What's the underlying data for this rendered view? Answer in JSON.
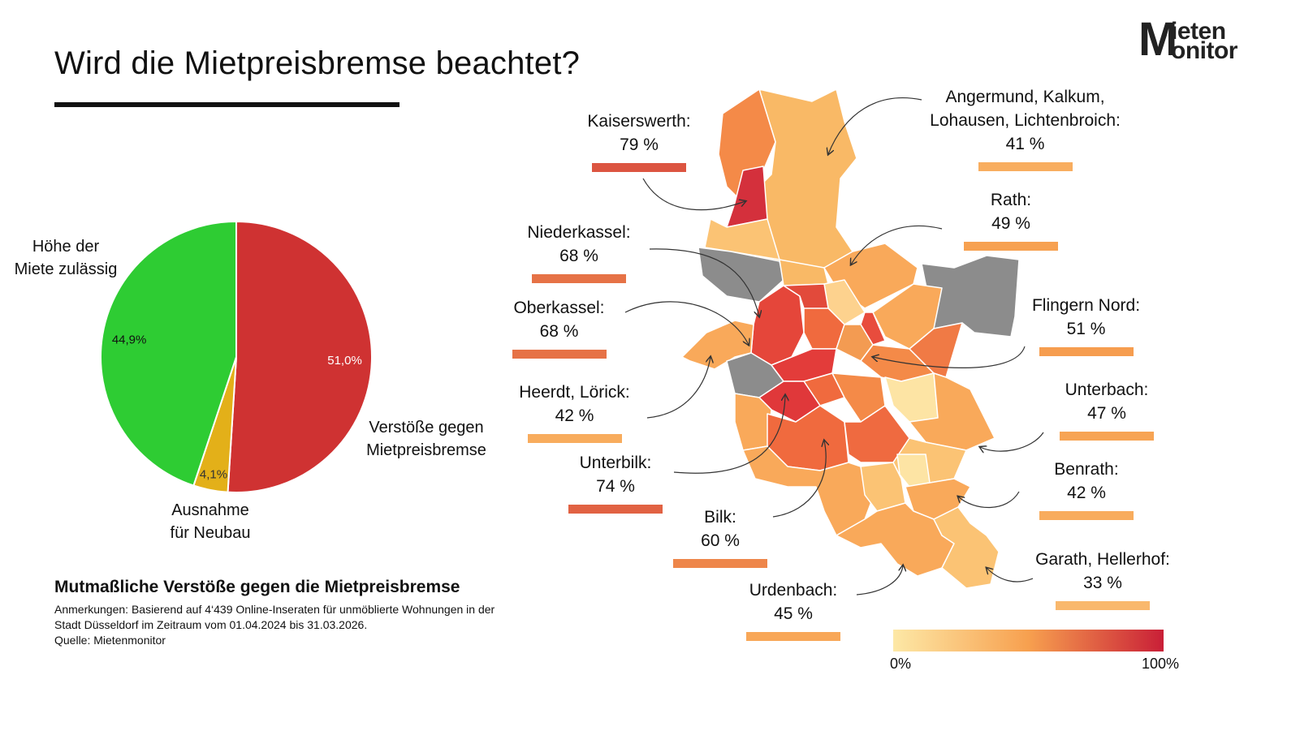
{
  "title": "Wird die Mietpreisbremse beachtet?",
  "logo": {
    "line1": "ieten",
    "line2": "onitor",
    "initial": "M"
  },
  "colors": {
    "compliant": "#2ecc33",
    "exception": "#e3b019",
    "violation": "#cf3232",
    "no_data": "#8c8c8c",
    "scale_low": "#fde8a6",
    "scale_mid": "#f7a04f",
    "scale_high": "#c91f37"
  },
  "chart_data": [
    {
      "type": "pie",
      "slices": [
        {
          "name": "Verstöße gegen Mietpreisbremse",
          "value": 51.0,
          "label": "51,0%",
          "color": "#cf3232"
        },
        {
          "name": "Ausnahme für Neubau",
          "value": 4.1,
          "label": "4,1%",
          "color": "#e3b019"
        },
        {
          "name": "Höhe der Miete zulässig",
          "value": 44.9,
          "label": "44,9%",
          "color": "#2ecc33"
        }
      ],
      "category_labels": {
        "compliant": [
          "Höhe der",
          "Miete zulässig"
        ],
        "violation": [
          "Verstöße gegen",
          "Mietpreisbremse"
        ],
        "exception": [
          "Ausnahme",
          "für Neubau"
        ]
      }
    },
    {
      "type": "choropleth",
      "scale": {
        "min": 0,
        "max": 100,
        "min_label": "0%",
        "max_label": "100%"
      },
      "districts": [
        {
          "name": "Kaiserswerth:",
          "value": 79,
          "label": "79 %"
        },
        {
          "name": "Angermund, Kalkum, Lohausen, Lichtenbroich:",
          "lines": [
            "Angermund, Kalkum,",
            "Lohausen, Lichtenbroich:"
          ],
          "value": 41,
          "label": "41 %"
        },
        {
          "name": "Rath:",
          "value": 49,
          "label": "49 %"
        },
        {
          "name": "Niederkassel:",
          "value": 68,
          "label": "68 %"
        },
        {
          "name": "Oberkassel:",
          "value": 68,
          "label": "68 %"
        },
        {
          "name": "Flingern Nord:",
          "value": 51,
          "label": "51 %"
        },
        {
          "name": "Heerdt, Lörick:",
          "value": 42,
          "label": "42 %"
        },
        {
          "name": "Unterbach:",
          "value": 47,
          "label": "47 %"
        },
        {
          "name": "Unterbilk:",
          "value": 74,
          "label": "74 %"
        },
        {
          "name": "Benrath:",
          "value": 42,
          "label": "42 %"
        },
        {
          "name": "Bilk:",
          "value": 60,
          "label": "60 %"
        },
        {
          "name": "Garath, Hellerhof:",
          "value": 33,
          "label": "33 %"
        },
        {
          "name": "Urdenbach:",
          "value": 45,
          "label": "45 %"
        }
      ]
    }
  ],
  "notes": {
    "heading": "Mutmaßliche Verstöße gegen die Mietpreisbremse",
    "line1": "Anmerkungen: Basierend auf 4‘439 Online-Inseraten für unmöblierte Wohnungen in der",
    "line2": "Stadt Düsseldorf im Zeitraum vom 01.04.2024 bis 31.03.2026.",
    "line3": "Quelle: Mietenmonitor"
  }
}
